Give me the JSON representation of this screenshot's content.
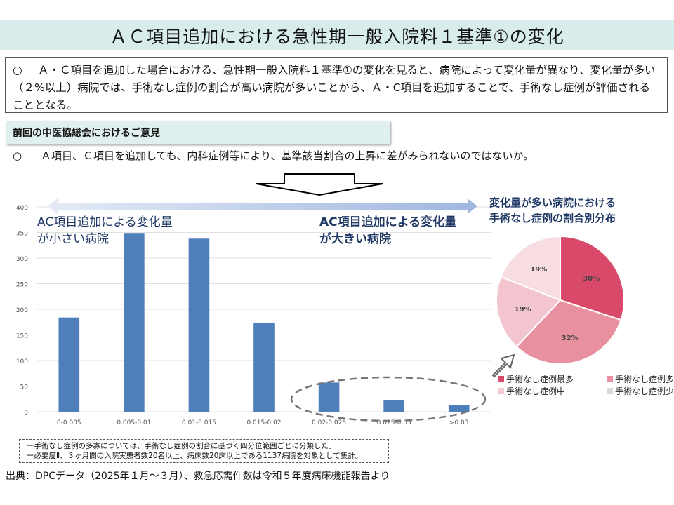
{
  "title": "ＡＣ項目追加における急性期一般入院料１基準①の変化",
  "summary": {
    "bullet": "○",
    "text": "Ａ・Ｃ項目を追加した場合における、急性期一般入院料１基準①の変化を見ると、病院によって変化量が異なり、変化量が多い（２%以上）病院では、手術なし症例の割合が高い病院が多いことから、Ａ・C項目を追加することで、手術なし症例が評価されることとなる。"
  },
  "opinion": {
    "label": "前回の中医協総会におけるご意見",
    "bullet": "○",
    "text": "Ａ項目、Ｃ項目を追加しても、内科症例等により、基準該当割合の上昇に差がみられないのではないか。"
  },
  "annotations": {
    "small_change": [
      "AC項目追加による変化量",
      "が小さい病院"
    ],
    "large_change": [
      "AC項目追加による変化量",
      "が大きい病院"
    ]
  },
  "chart_data": [
    {
      "type": "bar",
      "categories": [
        "0-0.005",
        "0.005-0.01",
        "0.01-0.015",
        "0.015-0.02",
        "0.02-0.025",
        "0.025-0.03",
        ">0.03"
      ],
      "values": [
        184,
        349,
        338,
        173,
        57,
        22,
        13
      ],
      "yticks": [
        "0",
        "50",
        "100",
        "150",
        "200",
        "250",
        "300",
        "350",
        "400"
      ],
      "ylim": [
        0,
        400
      ],
      "grid": true,
      "color": "#4e7fbb",
      "title": "",
      "xlabel": "",
      "ylabel": ""
    },
    {
      "type": "pie",
      "title": [
        "変化量が多い病院における",
        "手術なし症例の割合別分布"
      ],
      "slices": [
        {
          "label": "手術なし症例最多",
          "value": 30,
          "text": "30%",
          "color": "#d94a6a"
        },
        {
          "label": "手術なし症例多",
          "value": 32,
          "text": "32%",
          "color": "#e8909f"
        },
        {
          "label": "手術なし症例中",
          "value": 19,
          "text": "19%",
          "color": "#f3c6cf"
        },
        {
          "label": "手術なし症例少",
          "value": 19,
          "text": "19%",
          "color": "#f7dde1"
        }
      ],
      "legend_colors": [
        "#d94a6a",
        "#e8909f",
        "#f5cbd3",
        "#d9d9d9"
      ],
      "legend": "bottom"
    }
  ],
  "notes": [
    "ー手術なし症例の多寡については、手術なし症例の割合に基づく四分位範囲ごとに分類した。",
    "ー必要度Ⅱ、３ヶ月間の入院実患者数20名以上、病床数20床以上である1137病院を対象として集計。"
  ],
  "source": "出典：DPCデータ（2025年１月～３月）、救急応需件数は令和５年度病床機能報告より"
}
